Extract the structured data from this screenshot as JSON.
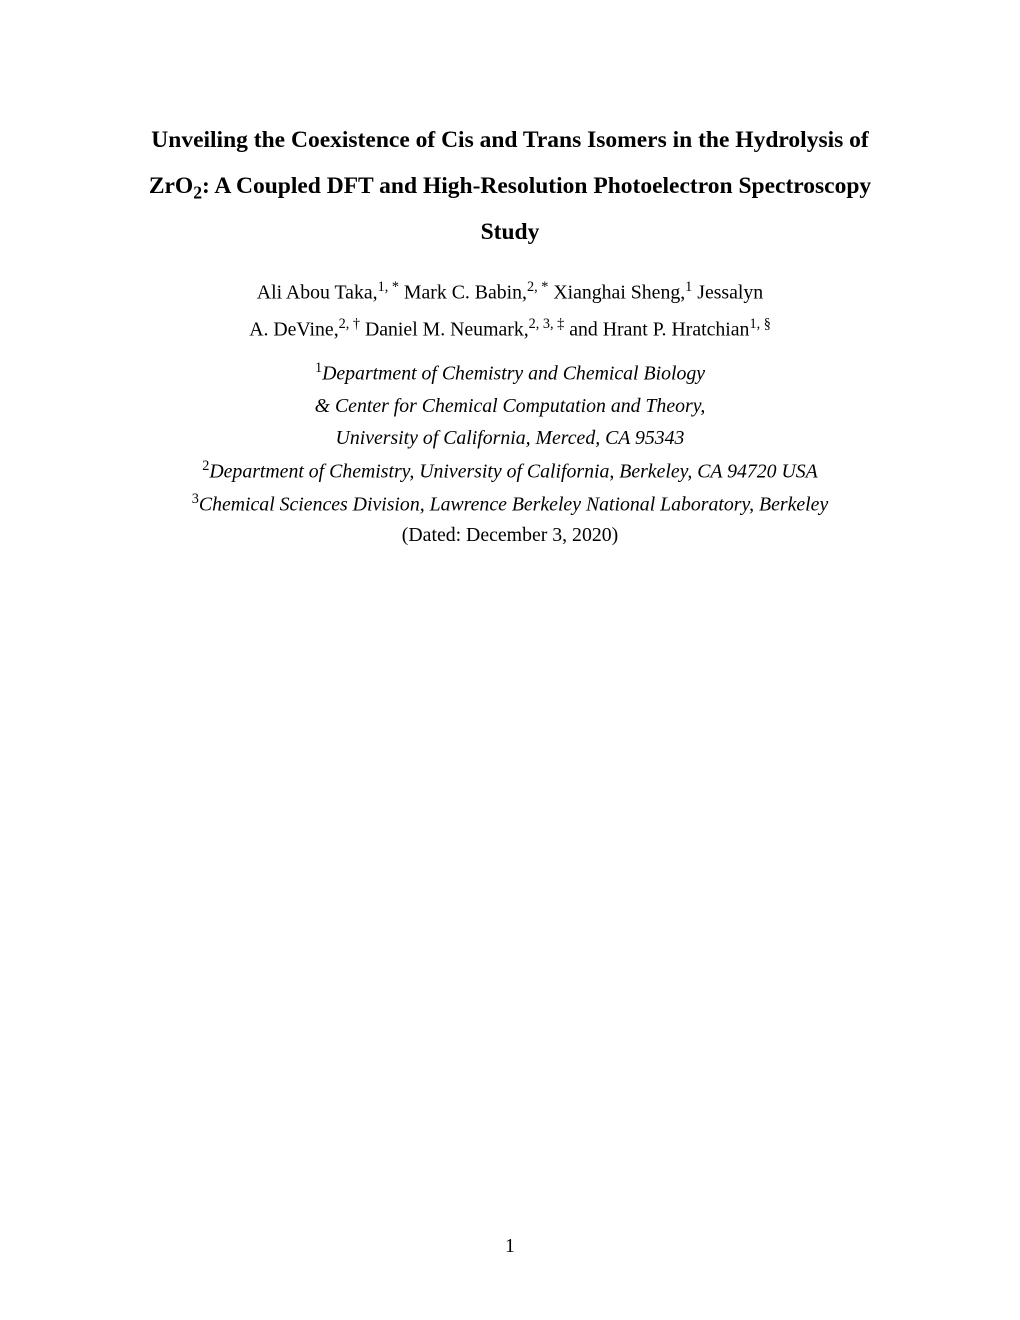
{
  "title": {
    "line1_pre": "Unveiling the Coexistence of Cis and Trans Isomers in the Hydrolysis of",
    "line2_prefix": "ZrO",
    "line2_sub": "2",
    "line2_rest": ": A Coupled DFT and High-Resolution Photoelectron Spectroscopy",
    "line3": "Study"
  },
  "authors": {
    "a1_name": "Ali Abou Taka,",
    "a1_sup": "1, *",
    "a2_name": "Mark C. Babin,",
    "a2_sup": "2, *",
    "a3_name": "Xianghai Sheng,",
    "a3_sup": "1",
    "a4_pre": "Jessalyn",
    "a4_name": "A. DeVine,",
    "a4_sup": "2, †",
    "a5_name": "Daniel M. Neumark,",
    "a5_sup": "2, 3, ‡",
    "and": "and",
    "a6_name": "Hrant P. Hratchian",
    "a6_sup": "1, §"
  },
  "affiliations": {
    "aff1_sup": "1",
    "aff1_line1": "Department of Chemistry and Chemical Biology",
    "aff1_line2": "& Center for Chemical Computation and Theory,",
    "aff1_line3": "University of California, Merced, CA 95343",
    "aff2_sup": "2",
    "aff2_text": "Department of Chemistry, University of California, Berkeley, CA 94720 USA",
    "aff3_sup": "3",
    "aff3_text": "Chemical Sciences Division, Lawrence Berkeley National Laboratory, Berkeley"
  },
  "dated": "(Dated: December 3, 2020)",
  "page_number": "1"
}
